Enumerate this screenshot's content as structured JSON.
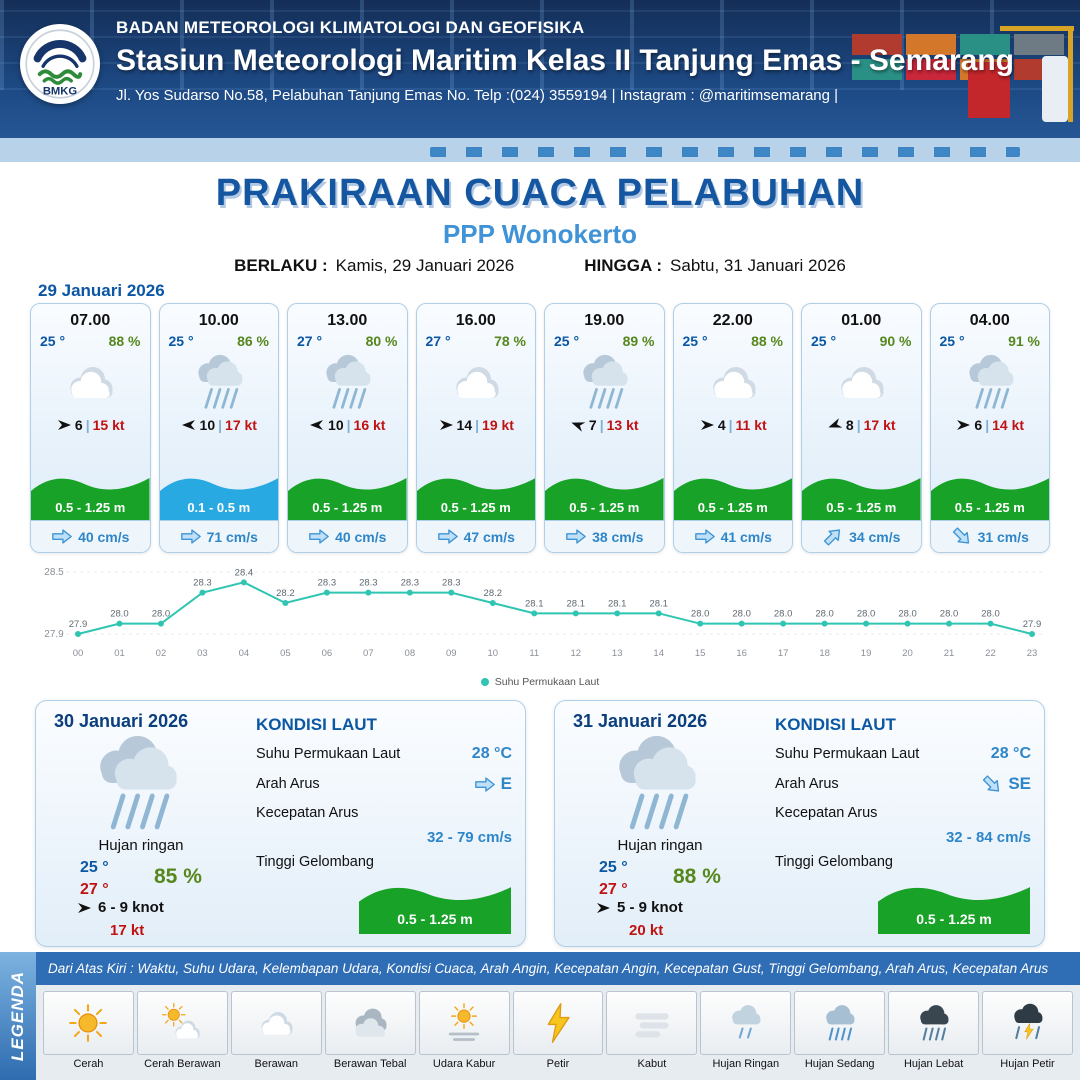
{
  "header": {
    "org": "BADAN METEOROLOGI KLIMATOLOGI DAN GEOFISIKA",
    "station": "Stasiun Meteorologi Maritim Kelas II Tanjung Emas - Semarang",
    "address": "Jl. Yos Sudarso No.58, Pelabuhan Tanjung Emas No. Telp :(024) 3559194 | Instagram : @maritimsemarang |",
    "logo_text": "BMKG"
  },
  "title": {
    "main": "PRAKIRAAN CUACA PELABUHAN",
    "sub": "PPP Wonokerto",
    "valid_label": "BERLAKU :",
    "valid_value": "Kamis, 29 Januari 2026",
    "until_label": "HINGGA :",
    "until_value": "Sabtu, 31 Januari 2026"
  },
  "forecast": {
    "date_label": "29 Januari 2026",
    "divider": "|",
    "cards": [
      {
        "time": "07.00",
        "temp": "25 °",
        "rh": "88 %",
        "icon": "cloudy",
        "wind_dir_deg": 0,
        "wind": "6",
        "gust": "15 kt",
        "wave": "0.5 - 1.25 m",
        "wave_level": "green",
        "current_dir_deg": 0,
        "current": "40 cm/s"
      },
      {
        "time": "10.00",
        "temp": "25 °",
        "rh": "86 %",
        "icon": "rain",
        "wind_dir_deg": 180,
        "wind": "10",
        "gust": "17 kt",
        "wave": "0.1 - 0.5 m",
        "wave_level": "blue",
        "current_dir_deg": 0,
        "current": "71 cm/s"
      },
      {
        "time": "13.00",
        "temp": "27 °",
        "rh": "80 %",
        "icon": "rain",
        "wind_dir_deg": 180,
        "wind": "10",
        "gust": "16 kt",
        "wave": "0.5 - 1.25 m",
        "wave_level": "green",
        "current_dir_deg": 0,
        "current": "40 cm/s"
      },
      {
        "time": "16.00",
        "temp": "27 °",
        "rh": "78 %",
        "icon": "cloudy",
        "wind_dir_deg": 0,
        "wind": "14",
        "gust": "19 kt",
        "wave": "0.5 - 1.25 m",
        "wave_level": "green",
        "current_dir_deg": 0,
        "current": "47 cm/s"
      },
      {
        "time": "19.00",
        "temp": "25 °",
        "rh": "89 %",
        "icon": "rain",
        "wind_dir_deg": 200,
        "wind": "7",
        "gust": "13 kt",
        "wave": "0.5 - 1.25 m",
        "wave_level": "green",
        "current_dir_deg": 0,
        "current": "38 cm/s"
      },
      {
        "time": "22.00",
        "temp": "25 °",
        "rh": "88 %",
        "icon": "cloudy",
        "wind_dir_deg": 0,
        "wind": "4",
        "gust": "11 kt",
        "wave": "0.5 - 1.25 m",
        "wave_level": "green",
        "current_dir_deg": 0,
        "current": "41 cm/s"
      },
      {
        "time": "01.00",
        "temp": "25 °",
        "rh": "90 %",
        "icon": "cloudy",
        "wind_dir_deg": 160,
        "wind": "8",
        "gust": "17 kt",
        "wave": "0.5 - 1.25 m",
        "wave_level": "green",
        "current_dir_deg": -45,
        "current": "34 cm/s"
      },
      {
        "time": "04.00",
        "temp": "25 °",
        "rh": "91 %",
        "icon": "rain",
        "wind_dir_deg": 0,
        "wind": "6",
        "gust": "14 kt",
        "wave": "0.5 - 1.25 m",
        "wave_level": "green",
        "current_dir_deg": 45,
        "current": "31 cm/s"
      }
    ]
  },
  "chart_data": {
    "type": "line",
    "x": [
      "00",
      "01",
      "02",
      "03",
      "04",
      "05",
      "06",
      "07",
      "08",
      "09",
      "10",
      "11",
      "12",
      "13",
      "14",
      "15",
      "16",
      "17",
      "18",
      "19",
      "20",
      "21",
      "22",
      "23"
    ],
    "series": [
      {
        "name": "Suhu Permukaan Laut",
        "values": [
          27.9,
          28.0,
          28.0,
          28.3,
          28.4,
          28.2,
          28.3,
          28.3,
          28.3,
          28.3,
          28.2,
          28.1,
          28.1,
          28.1,
          28.1,
          28.0,
          28.0,
          28.0,
          28.0,
          28.0,
          28.0,
          28.0,
          28.0,
          27.9
        ]
      }
    ],
    "ylim": [
      27.9,
      28.5
    ],
    "yticks": [
      28.5,
      27.9
    ],
    "legend_position": "bottom-center",
    "grid": false,
    "line_color": "#2fc5b2"
  },
  "days": [
    {
      "date": "30 Januari 2026",
      "icon": "rain",
      "condition": "Hujan ringan",
      "temp_min": "25 °",
      "temp_max": "27 °",
      "rh": "85 %",
      "wind": "6  - 9 knot",
      "gust": "17 kt",
      "sea": {
        "title": "KONDISI LAUT",
        "sst_label": "Suhu Permukaan Laut",
        "sst": "28 °C",
        "dir_label": "Arah Arus",
        "dir": "E",
        "dir_deg": 0,
        "speed_label": "Kecepatan Arus",
        "speed": "32 - 79 cm/s",
        "wave_label": "Tinggi Gelombang",
        "wave": "0.5 - 1.25 m"
      }
    },
    {
      "date": "31 Januari 2026",
      "icon": "rain",
      "condition": "Hujan ringan",
      "temp_min": "25 °",
      "temp_max": "27 °",
      "rh": "88 %",
      "wind": "5  - 9 knot",
      "gust": "20 kt",
      "sea": {
        "title": "KONDISI LAUT",
        "sst_label": "Suhu Permukaan Laut",
        "sst": "28 °C",
        "dir_label": "Arah Arus",
        "dir": "SE",
        "dir_deg": 45,
        "speed_label": "Kecepatan Arus",
        "speed": "32 - 84 cm/s",
        "wave_label": "Tinggi Gelombang",
        "wave": "0.5 - 1.25 m"
      }
    }
  ],
  "legend": {
    "title": "LEGENDA",
    "description": "Dari Atas Kiri : Waktu, Suhu Udara, Kelembapan Udara, Kondisi Cuaca, Arah Angin, Kecepatan Angin, Kecepatan Gust, Tinggi Gelombang, Arah Arus, Kecepatan Arus",
    "items": [
      {
        "label": "Cerah",
        "icon": "sun"
      },
      {
        "label": "Cerah Berawan",
        "icon": "sun-cloud"
      },
      {
        "label": "Berawan",
        "icon": "cloud"
      },
      {
        "label": "Berawan Tebal",
        "icon": "cloud-thick"
      },
      {
        "label": "Udara Kabur",
        "icon": "haze"
      },
      {
        "label": "Petir",
        "icon": "lightning"
      },
      {
        "label": "Kabut",
        "icon": "fog"
      },
      {
        "label": "Hujan Ringan",
        "icon": "rain-light"
      },
      {
        "label": "Hujan Sedang",
        "icon": "rain-medium"
      },
      {
        "label": "Hujan Lebat",
        "icon": "rain-dark"
      },
      {
        "label": "Hujan Petir",
        "icon": "rain-lightning"
      }
    ]
  },
  "colors": {
    "wave_green": "#18a227",
    "wave_blue": "#29a9e1",
    "accent_blue": "#0b57a4"
  }
}
